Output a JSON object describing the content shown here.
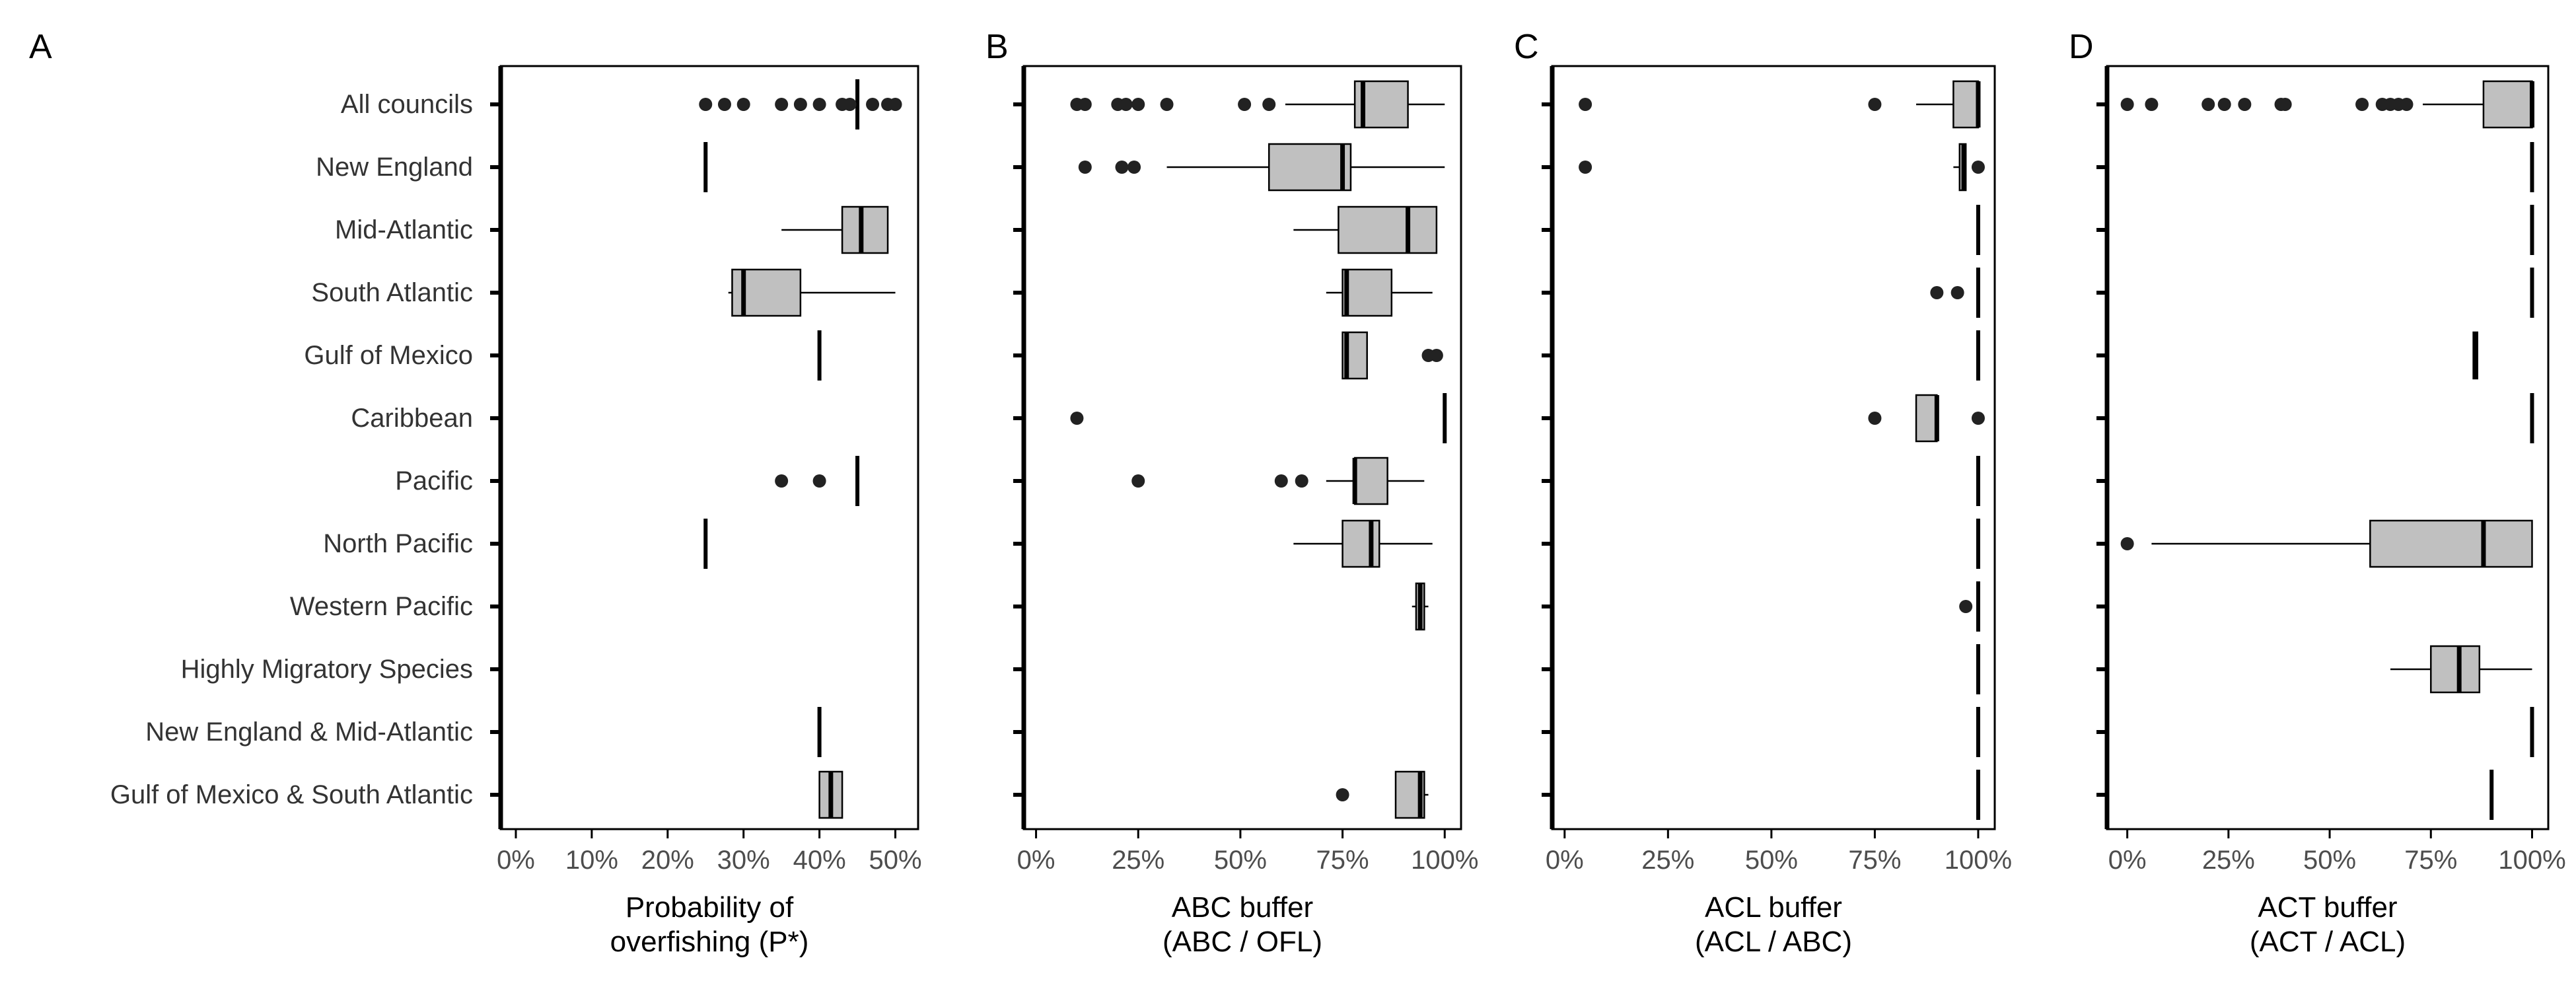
{
  "chart_data": {
    "type": "boxplot",
    "layout": "four horizontal box-plot panels sharing a category axis",
    "categories": [
      "All councils",
      "New England",
      "Mid-Atlantic",
      "South Atlantic",
      "Gulf of Mexico",
      "Caribbean",
      "Pacific",
      "North Pacific",
      "Western Pacific",
      "Highly Migratory Species",
      "New England & Mid-Atlantic",
      "Gulf of Mexico & South Atlantic"
    ],
    "box_fill": "#c0c0c0",
    "outlier_color": "#222222",
    "grid": false,
    "panels": [
      {
        "letter": "A",
        "xlabel": [
          "Probability of",
          "overfishing (P*)"
        ],
        "xlim": [
          -0.02,
          0.53
        ],
        "ticks": [
          0,
          0.1,
          0.2,
          0.3,
          0.4,
          0.5
        ],
        "tick_labels": [
          "0%",
          "10%",
          "20%",
          "30%",
          "40%",
          "50%"
        ],
        "boxes": [
          {
            "cat": "All councils",
            "min": 0.45,
            "q1": 0.45,
            "median": 0.45,
            "q3": 0.45,
            "max": 0.45,
            "outliers": [
              0.25,
              0.275,
              0.3,
              0.35,
              0.375,
              0.4,
              0.43,
              0.44,
              0.47,
              0.49,
              0.5
            ]
          },
          {
            "cat": "New England",
            "min": 0.25,
            "q1": 0.25,
            "median": 0.25,
            "q3": 0.25,
            "max": 0.25,
            "outliers": []
          },
          {
            "cat": "Mid-Atlantic",
            "min": 0.35,
            "q1": 0.43,
            "median": 0.455,
            "q3": 0.49,
            "max": 0.49,
            "outliers": []
          },
          {
            "cat": "South Atlantic",
            "min": 0.28,
            "q1": 0.285,
            "median": 0.3,
            "q3": 0.375,
            "max": 0.5,
            "outliers": []
          },
          {
            "cat": "Gulf of Mexico",
            "min": 0.4,
            "q1": 0.4,
            "median": 0.4,
            "q3": 0.4,
            "max": 0.4,
            "outliers": []
          },
          {
            "cat": "Pacific",
            "min": 0.45,
            "q1": 0.45,
            "median": 0.45,
            "q3": 0.45,
            "max": 0.45,
            "outliers": [
              0.35,
              0.4
            ]
          },
          {
            "cat": "North Pacific",
            "min": 0.25,
            "q1": 0.25,
            "median": 0.25,
            "q3": 0.25,
            "max": 0.25,
            "outliers": []
          },
          {
            "cat": "New England & Mid-Atlantic",
            "min": 0.4,
            "q1": 0.4,
            "median": 0.4,
            "q3": 0.4,
            "max": 0.4,
            "outliers": []
          },
          {
            "cat": "Gulf of Mexico & South Atlantic",
            "min": 0.4,
            "q1": 0.4,
            "median": 0.415,
            "q3": 0.43,
            "max": 0.43,
            "outliers": []
          }
        ]
      },
      {
        "letter": "B",
        "xlabel": [
          "ABC buffer",
          "(ABC / OFL)"
        ],
        "xlim": [
          -0.03,
          1.04
        ],
        "ticks": [
          0,
          0.25,
          0.5,
          0.75,
          1.0
        ],
        "tick_labels": [
          "0%",
          "25%",
          "50%",
          "75%",
          "100%"
        ],
        "boxes": [
          {
            "cat": "All councils",
            "min": 0.61,
            "q1": 0.78,
            "median": 0.8,
            "q3": 0.91,
            "max": 1.0,
            "outliers": [
              0.1,
              0.12,
              0.2,
              0.22,
              0.25,
              0.32,
              0.51,
              0.57
            ]
          },
          {
            "cat": "New England",
            "min": 0.32,
            "q1": 0.57,
            "median": 0.75,
            "q3": 0.77,
            "max": 1.0,
            "outliers": [
              0.12,
              0.21,
              0.24
            ]
          },
          {
            "cat": "Mid-Atlantic",
            "min": 0.63,
            "q1": 0.74,
            "median": 0.91,
            "q3": 0.98,
            "max": 0.98,
            "outliers": []
          },
          {
            "cat": "South Atlantic",
            "min": 0.71,
            "q1": 0.75,
            "median": 0.76,
            "q3": 0.87,
            "max": 0.97,
            "outliers": []
          },
          {
            "cat": "Gulf of Mexico",
            "min": 0.75,
            "q1": 0.75,
            "median": 0.76,
            "q3": 0.81,
            "max": 0.81,
            "outliers": [
              0.96,
              0.98
            ]
          },
          {
            "cat": "Caribbean",
            "min": 1.0,
            "q1": 1.0,
            "median": 1.0,
            "q3": 1.0,
            "max": 1.0,
            "outliers": [
              0.1
            ]
          },
          {
            "cat": "Pacific",
            "min": 0.71,
            "q1": 0.78,
            "median": 0.78,
            "q3": 0.86,
            "max": 0.95,
            "outliers": [
              0.25,
              0.6,
              0.65
            ]
          },
          {
            "cat": "North Pacific",
            "min": 0.63,
            "q1": 0.75,
            "median": 0.82,
            "q3": 0.84,
            "max": 0.97,
            "outliers": []
          },
          {
            "cat": "Western Pacific",
            "min": 0.92,
            "q1": 0.93,
            "median": 0.94,
            "q3": 0.95,
            "max": 0.96,
            "outliers": []
          },
          {
            "cat": "Gulf of Mexico & South Atlantic",
            "min": 0.88,
            "q1": 0.88,
            "median": 0.94,
            "q3": 0.95,
            "max": 0.96,
            "outliers": [
              0.75
            ]
          }
        ]
      },
      {
        "letter": "C",
        "xlabel": [
          "ACL buffer",
          "(ACL / ABC)"
        ],
        "xlim": [
          -0.03,
          1.04
        ],
        "ticks": [
          0,
          0.25,
          0.5,
          0.75,
          1.0
        ],
        "tick_labels": [
          "0%",
          "25%",
          "50%",
          "75%",
          "100%"
        ],
        "boxes": [
          {
            "cat": "All councils",
            "min": 0.85,
            "q1": 0.94,
            "median": 1.0,
            "q3": 1.0,
            "max": 1.0,
            "outliers": [
              0.05,
              0.75
            ]
          },
          {
            "cat": "New England",
            "min": 0.94,
            "q1": 0.955,
            "median": 0.965,
            "q3": 0.97,
            "max": 0.97,
            "outliers": [
              0.05,
              1.0
            ]
          },
          {
            "cat": "Mid-Atlantic",
            "min": 1.0,
            "q1": 1.0,
            "median": 1.0,
            "q3": 1.0,
            "max": 1.0,
            "outliers": []
          },
          {
            "cat": "South Atlantic",
            "min": 1.0,
            "q1": 1.0,
            "median": 1.0,
            "q3": 1.0,
            "max": 1.0,
            "outliers": [
              0.9,
              0.95
            ]
          },
          {
            "cat": "Gulf of Mexico",
            "min": 1.0,
            "q1": 1.0,
            "median": 1.0,
            "q3": 1.0,
            "max": 1.0,
            "outliers": []
          },
          {
            "cat": "Caribbean",
            "min": 0.85,
            "q1": 0.85,
            "median": 0.9,
            "q3": 0.9,
            "max": 0.9,
            "outliers": [
              0.75,
              1.0
            ]
          },
          {
            "cat": "Pacific",
            "min": 1.0,
            "q1": 1.0,
            "median": 1.0,
            "q3": 1.0,
            "max": 1.0,
            "outliers": []
          },
          {
            "cat": "North Pacific",
            "min": 1.0,
            "q1": 1.0,
            "median": 1.0,
            "q3": 1.0,
            "max": 1.0,
            "outliers": []
          },
          {
            "cat": "Western Pacific",
            "min": 1.0,
            "q1": 1.0,
            "median": 1.0,
            "q3": 1.0,
            "max": 1.0,
            "outliers": [
              0.97
            ]
          },
          {
            "cat": "Highly Migratory Species",
            "min": 1.0,
            "q1": 1.0,
            "median": 1.0,
            "q3": 1.0,
            "max": 1.0,
            "outliers": []
          },
          {
            "cat": "New England & Mid-Atlantic",
            "min": 1.0,
            "q1": 1.0,
            "median": 1.0,
            "q3": 1.0,
            "max": 1.0,
            "outliers": []
          },
          {
            "cat": "Gulf of Mexico & South Atlantic",
            "min": 1.0,
            "q1": 1.0,
            "median": 1.0,
            "q3": 1.0,
            "max": 1.0,
            "outliers": []
          }
        ]
      },
      {
        "letter": "D",
        "xlabel": [
          "ACT buffer",
          "(ACT / ACL)"
        ],
        "xlim": [
          -0.05,
          1.04
        ],
        "ticks": [
          0,
          0.25,
          0.5,
          0.75,
          1.0
        ],
        "tick_labels": [
          "0%",
          "25%",
          "50%",
          "75%",
          "100%"
        ],
        "boxes": [
          {
            "cat": "All councils",
            "min": 0.73,
            "q1": 0.88,
            "median": 1.0,
            "q3": 1.0,
            "max": 1.0,
            "outliers": [
              0.0,
              0.06,
              0.2,
              0.24,
              0.29,
              0.38,
              0.39,
              0.58,
              0.63,
              0.65,
              0.67,
              0.69
            ]
          },
          {
            "cat": "New England",
            "min": 1.0,
            "q1": 1.0,
            "median": 1.0,
            "q3": 1.0,
            "max": 1.0,
            "outliers": []
          },
          {
            "cat": "Mid-Atlantic",
            "min": 1.0,
            "q1": 1.0,
            "median": 1.0,
            "q3": 1.0,
            "max": 1.0,
            "outliers": []
          },
          {
            "cat": "South Atlantic",
            "min": 1.0,
            "q1": 1.0,
            "median": 1.0,
            "q3": 1.0,
            "max": 1.0,
            "outliers": []
          },
          {
            "cat": "Gulf of Mexico",
            "min": 0.855,
            "q1": 0.855,
            "median": 0.86,
            "q3": 0.865,
            "max": 0.865,
            "outliers": []
          },
          {
            "cat": "Caribbean",
            "min": 1.0,
            "q1": 1.0,
            "median": 1.0,
            "q3": 1.0,
            "max": 1.0,
            "outliers": []
          },
          {
            "cat": "North Pacific",
            "min": 0.06,
            "q1": 0.6,
            "median": 0.88,
            "q3": 1.0,
            "max": 1.0,
            "outliers": [
              0.0
            ]
          },
          {
            "cat": "Highly Migratory Species",
            "min": 0.65,
            "q1": 0.75,
            "median": 0.82,
            "q3": 0.87,
            "max": 1.0,
            "outliers": []
          },
          {
            "cat": "New England & Mid-Atlantic",
            "min": 1.0,
            "q1": 1.0,
            "median": 1.0,
            "q3": 1.0,
            "max": 1.0,
            "outliers": []
          },
          {
            "cat": "Gulf of Mexico & South Atlantic",
            "min": 0.9,
            "q1": 0.9,
            "median": 0.9,
            "q3": 0.9,
            "max": 0.9,
            "outliers": []
          }
        ]
      }
    ]
  }
}
